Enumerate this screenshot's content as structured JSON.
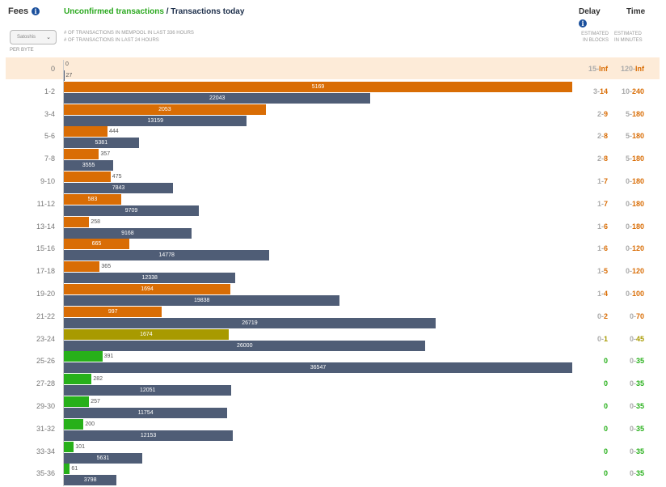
{
  "header": {
    "fees_label": "Fees",
    "title_unconfirmed": "Unconfirmed transactions",
    "title_separator": " / ",
    "title_today": "Transactions today",
    "select_value": "Satoshis",
    "per_byte": "PER BYTE",
    "legend_mempool": "# OF TRANSACTIONS IN MEMPOOL IN LAST 336 HOURS",
    "legend_24h": "# OF TRANSACTIONS IN LAST 24 HOURS",
    "delay_label": "Delay",
    "time_label": "Time",
    "delay_sub_1": "ESTIMATED",
    "delay_sub_2": "IN BLOCKS",
    "time_sub_1": "ESTIMATED",
    "time_sub_2": "IN MINUTES"
  },
  "colors": {
    "orange": "#d96d05",
    "olive": "#a89a00",
    "green": "#27b01a",
    "slate": "#4f5d76",
    "highlight_row": "#fdebd8"
  },
  "chart_data": {
    "type": "bar",
    "orientation": "horizontal",
    "categories": [
      "0",
      "1-2",
      "3-4",
      "5-6",
      "7-8",
      "9-10",
      "11-12",
      "13-14",
      "15-16",
      "17-18",
      "19-20",
      "21-22",
      "23-24",
      "25-26",
      "27-28",
      "29-30",
      "31-32",
      "33-34",
      "35-36"
    ],
    "series": [
      {
        "values": [
          0,
          5169,
          2053,
          444,
          357,
          475,
          583,
          258,
          665,
          365,
          1694,
          997,
          1674,
          391,
          282,
          257,
          200,
          101,
          61
        ]
      },
      {
        "values": [
          27,
          22043,
          13159,
          5381,
          3555,
          7843,
          9709,
          9168,
          14778,
          12338,
          19838,
          26719,
          26000,
          36547,
          12051,
          11754,
          12153,
          5631,
          3798
        ]
      }
    ],
    "series_scale": [
      5169,
      36547
    ],
    "mempool_colors": [
      "orange",
      "orange",
      "orange",
      "orange",
      "orange",
      "orange",
      "orange",
      "orange",
      "orange",
      "orange",
      "orange",
      "orange",
      "olive",
      "green",
      "green",
      "green",
      "green",
      "green",
      "green"
    ],
    "delay": [
      [
        "15",
        "Inf"
      ],
      [
        "3",
        "14"
      ],
      [
        "2",
        "9"
      ],
      [
        "2",
        "8"
      ],
      [
        "2",
        "8"
      ],
      [
        "1",
        "7"
      ],
      [
        "1",
        "7"
      ],
      [
        "1",
        "6"
      ],
      [
        "1",
        "6"
      ],
      [
        "1",
        "5"
      ],
      [
        "1",
        "4"
      ],
      [
        "0",
        "2"
      ],
      [
        "0",
        "1"
      ],
      [
        "0",
        ""
      ],
      [
        "0",
        ""
      ],
      [
        "0",
        ""
      ],
      [
        "0",
        ""
      ],
      [
        "0",
        ""
      ],
      [
        "0",
        ""
      ]
    ],
    "time": [
      [
        "120",
        "Inf"
      ],
      [
        "10",
        "240"
      ],
      [
        "5",
        "180"
      ],
      [
        "5",
        "180"
      ],
      [
        "5",
        "180"
      ],
      [
        "0",
        "180"
      ],
      [
        "0",
        "180"
      ],
      [
        "0",
        "180"
      ],
      [
        "0",
        "120"
      ],
      [
        "0",
        "120"
      ],
      [
        "0",
        "100"
      ],
      [
        "0",
        "70"
      ],
      [
        "0",
        "45"
      ],
      [
        "0",
        "35"
      ],
      [
        "0",
        "35"
      ],
      [
        "0",
        "35"
      ],
      [
        "0",
        "35"
      ],
      [
        "0",
        "35"
      ],
      [
        "0",
        "35"
      ]
    ]
  }
}
